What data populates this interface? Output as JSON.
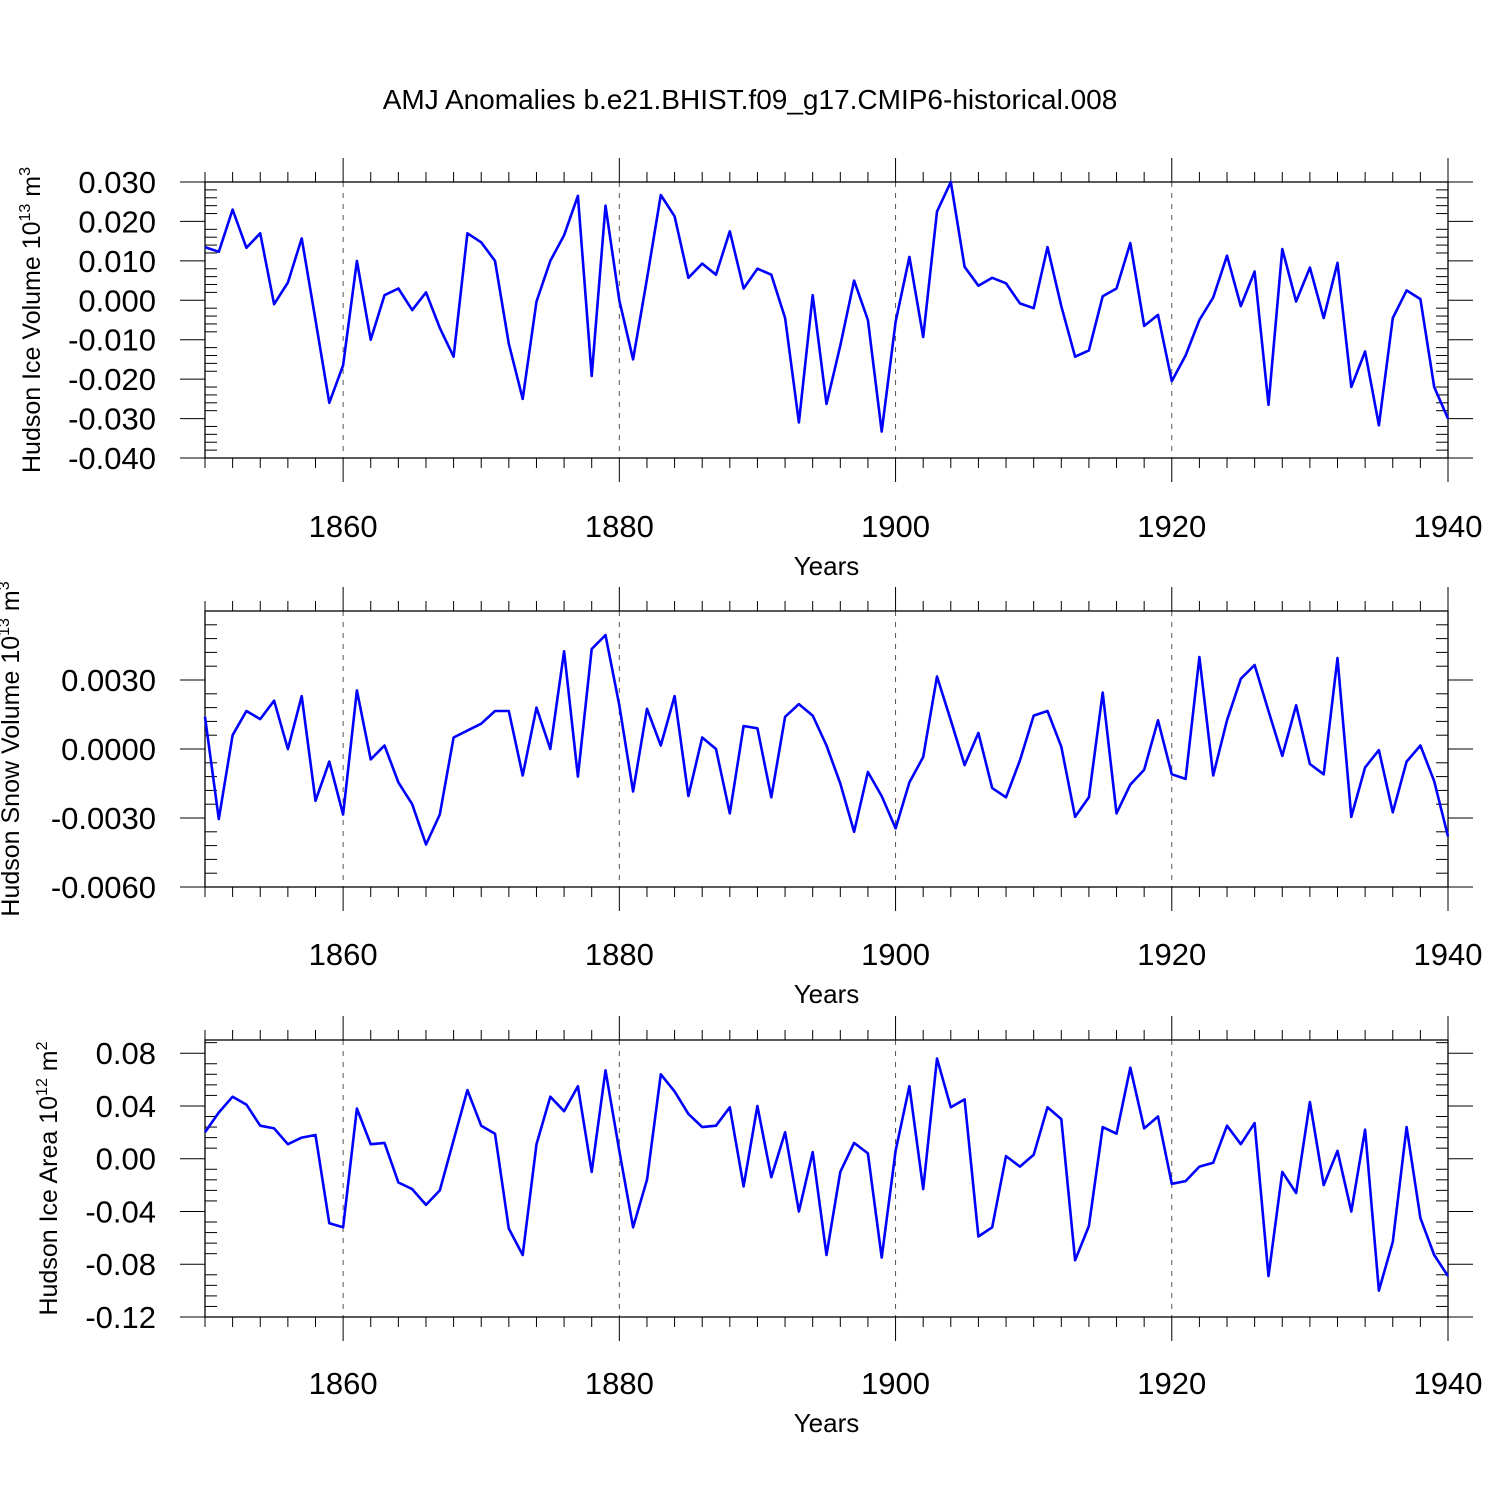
{
  "title": "AMJ Anomalies b.e21.BHIST.f09_g17.CMIP6-historical.008",
  "chart_data": [
    {
      "type": "line",
      "ylabel_main": "Hudson Ice Volume 10",
      "ylabel_sup": "13",
      "ylabel_unit": " m",
      "ylabel_unit_sup": "3",
      "xlabel": "Years",
      "xlim": [
        1850,
        1940
      ],
      "ylim": [
        -0.04,
        0.03
      ],
      "x_ticks": [
        1860,
        1880,
        1900,
        1920,
        1940
      ],
      "x_tick_labels": [
        "1860",
        "1880",
        "1900",
        "1920",
        "1940"
      ],
      "y_ticks": [
        0.03,
        0.02,
        0.01,
        0.0,
        -0.01,
        -0.02,
        -0.03,
        -0.04
      ],
      "y_tick_labels": [
        "0.030",
        "0.020",
        "0.010",
        "0.000",
        "-0.010",
        "-0.020",
        "-0.030",
        "-0.040"
      ],
      "series_color": "#0000ff",
      "x_start": 1850,
      "values": [
        0.0135,
        0.0123,
        0.023,
        0.0133,
        0.017,
        -0.001,
        0.0045,
        0.0157,
        -0.005,
        -0.026,
        -0.0165,
        0.01,
        -0.01,
        0.0013,
        0.003,
        -0.0025,
        0.002,
        -0.007,
        -0.0143,
        0.017,
        0.0147,
        0.01,
        -0.011,
        -0.025,
        -0.0003,
        0.01,
        0.0165,
        0.0265,
        -0.0192,
        0.024,
        0.0,
        -0.015,
        0.0055,
        0.0267,
        0.0213,
        0.0057,
        0.0093,
        0.0065,
        0.0175,
        0.003,
        0.008,
        0.0065,
        -0.0045,
        -0.031,
        0.0013,
        -0.0263,
        -0.0115,
        0.005,
        -0.005,
        -0.0333,
        -0.0055,
        0.011,
        -0.0093,
        0.0225,
        0.03,
        0.0085,
        0.0037,
        0.0057,
        0.0043,
        -0.0008,
        -0.002,
        0.0135,
        -0.0015,
        -0.0143,
        -0.0127,
        0.001,
        0.003,
        0.0145,
        -0.0065,
        -0.0037,
        -0.0205,
        -0.014,
        -0.005,
        0.0007,
        0.0113,
        -0.0015,
        0.0073,
        -0.0265,
        0.013,
        -0.0003,
        0.0083,
        -0.0045,
        0.0095,
        -0.022,
        -0.013,
        -0.0317,
        -0.0045,
        0.0025,
        0.0003,
        -0.022,
        -0.03
      ]
    },
    {
      "type": "line",
      "ylabel_main": "Hudson Snow Volume 10",
      "ylabel_sup": "13",
      "ylabel_unit": " m",
      "ylabel_unit_sup": "3",
      "xlabel": "Years",
      "xlim": [
        1850,
        1940
      ],
      "ylim": [
        -0.006,
        0.006
      ],
      "x_ticks": [
        1860,
        1880,
        1900,
        1920,
        1940
      ],
      "x_tick_labels": [
        "1860",
        "1880",
        "1900",
        "1920",
        "1940"
      ],
      "y_ticks": [
        0.003,
        0.0,
        -0.003,
        -0.006
      ],
      "y_tick_labels": [
        "0.0030",
        "0.0000",
        "-0.0030",
        "-0.0060"
      ],
      "series_color": "#0000ff",
      "x_start": 1850,
      "values": [
        0.0014,
        -0.00305,
        0.0006,
        0.00165,
        0.0013,
        0.0021,
        0.0,
        0.0023,
        -0.00225,
        -0.00055,
        -0.00285,
        0.00255,
        -0.00045,
        0.00015,
        -0.00145,
        -0.0024,
        -0.00415,
        -0.00285,
        0.0005,
        0.0008,
        0.0011,
        0.00165,
        0.00165,
        -0.00115,
        0.0018,
        0.0,
        0.00425,
        -0.0012,
        0.00435,
        0.00495,
        0.0019,
        -0.00185,
        0.00175,
        0.00015,
        0.0023,
        -0.00205,
        0.0005,
        0.0,
        -0.0028,
        0.001,
        0.0009,
        -0.0021,
        0.0014,
        0.00195,
        0.00145,
        0.00015,
        -0.0015,
        -0.0036,
        -0.001,
        -0.00205,
        -0.00345,
        -0.00145,
        -0.00035,
        0.00315,
        0.00125,
        -0.0007,
        0.0007,
        -0.0017,
        -0.0021,
        -0.0005,
        0.00145,
        0.00165,
        0.0001,
        -0.00295,
        -0.0021,
        0.00245,
        -0.0028,
        -0.00155,
        -0.0009,
        0.00125,
        -0.0011,
        -0.0013,
        0.004,
        -0.00115,
        0.00125,
        0.00305,
        0.00365,
        0.00165,
        -0.0003,
        0.0019,
        -0.00065,
        -0.0011,
        0.00395,
        -0.00295,
        -0.0008,
        -5e-05,
        -0.00275,
        -0.00055,
        0.00015,
        -0.0014,
        -0.0038
      ]
    },
    {
      "type": "line",
      "ylabel_main": "Hudson Ice Area 10",
      "ylabel_sup": "12",
      "ylabel_unit": " m",
      "ylabel_unit_sup": "2",
      "xlabel": "Years",
      "xlim": [
        1850,
        1940
      ],
      "ylim": [
        -0.12,
        0.09
      ],
      "x_ticks": [
        1860,
        1880,
        1900,
        1920,
        1940
      ],
      "x_tick_labels": [
        "1860",
        "1880",
        "1900",
        "1920",
        "1940"
      ],
      "y_ticks": [
        0.08,
        0.04,
        0.0,
        -0.04,
        -0.08,
        -0.12
      ],
      "y_tick_labels": [
        "0.08",
        "0.04",
        "0.00",
        "-0.04",
        "-0.08",
        "-0.12"
      ],
      "series_color": "#0000ff",
      "x_start": 1850,
      "values": [
        0.02,
        0.035,
        0.047,
        0.041,
        0.025,
        0.023,
        0.011,
        0.016,
        0.018,
        -0.049,
        -0.052,
        0.038,
        0.011,
        0.012,
        -0.018,
        -0.023,
        -0.035,
        -0.024,
        0.014,
        0.052,
        0.025,
        0.019,
        -0.053,
        -0.073,
        0.011,
        0.047,
        0.036,
        0.055,
        -0.01,
        0.067,
        0.006,
        -0.052,
        -0.016,
        0.064,
        0.051,
        0.034,
        0.024,
        0.025,
        0.039,
        -0.021,
        0.04,
        -0.014,
        0.02,
        -0.04,
        0.005,
        -0.073,
        -0.01,
        0.012,
        0.004,
        -0.075,
        0.006,
        0.055,
        -0.023,
        0.076,
        0.039,
        0.045,
        -0.059,
        -0.052,
        0.002,
        -0.006,
        0.003,
        0.039,
        0.03,
        -0.077,
        -0.051,
        0.024,
        0.019,
        0.069,
        0.023,
        0.032,
        -0.019,
        -0.017,
        -0.006,
        -0.003,
        0.025,
        0.011,
        0.027,
        -0.089,
        -0.01,
        -0.026,
        0.043,
        -0.02,
        0.006,
        -0.04,
        0.022,
        -0.1,
        -0.063,
        0.024,
        -0.045,
        -0.073,
        -0.089
      ]
    }
  ]
}
